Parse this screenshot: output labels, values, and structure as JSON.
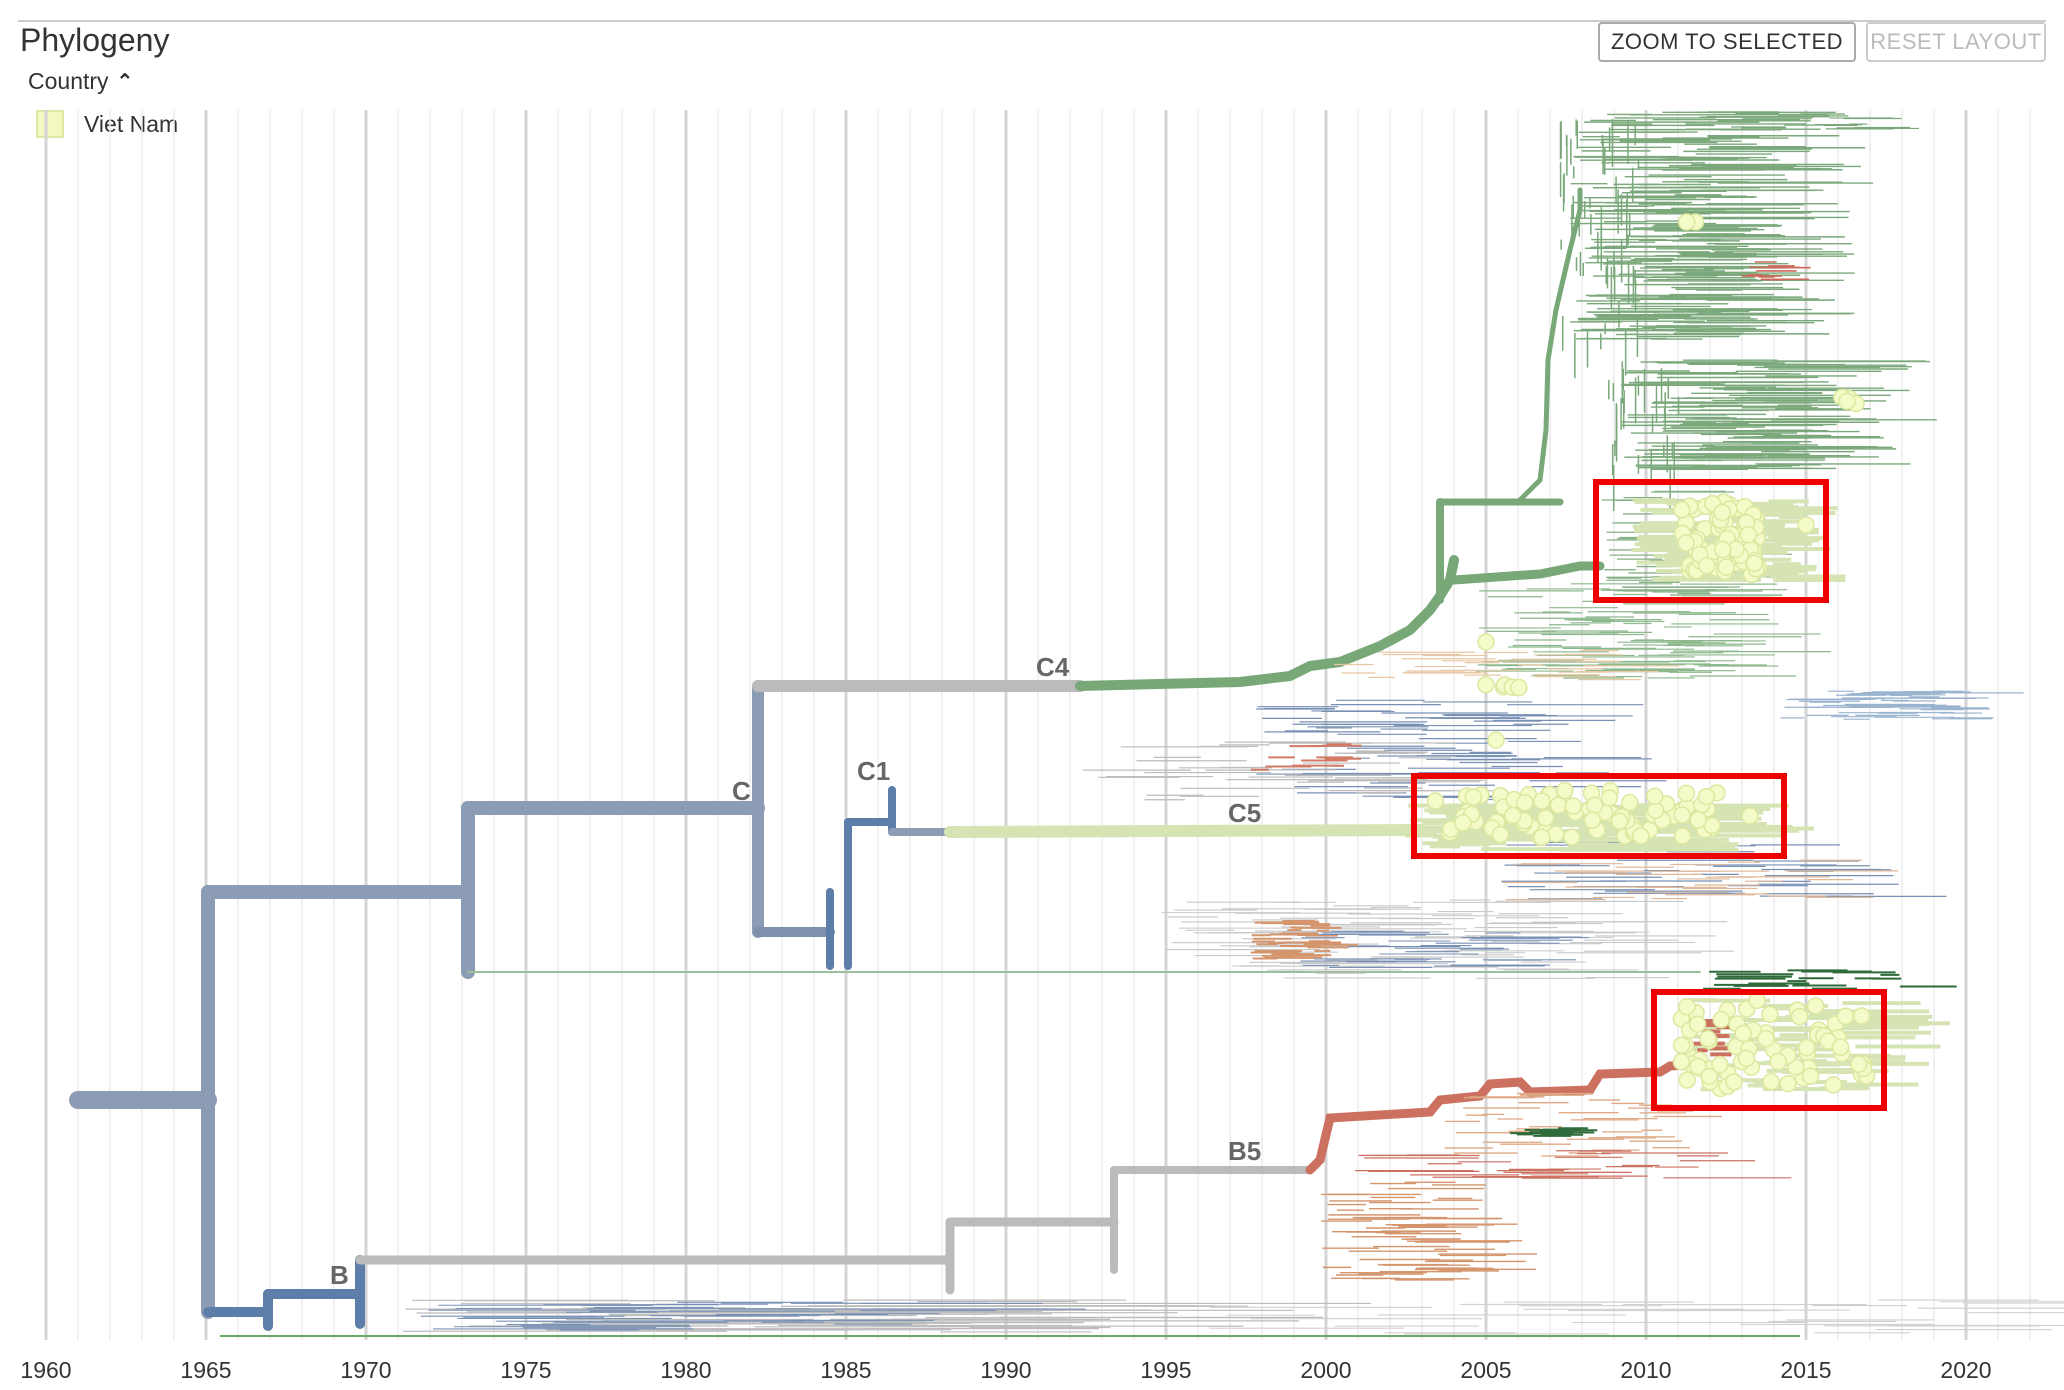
{
  "header": {
    "title": "Phylogeny",
    "zoom_label": "ZOOM TO SELECTED",
    "reset_label": "RESET LAYOUT"
  },
  "legend": {
    "attribute": "Country",
    "items": [
      {
        "label": "Viet Nam",
        "color": "#f2f8c0"
      }
    ]
  },
  "axis": {
    "ticks": [
      "1960",
      "1965",
      "1970",
      "1975",
      "1980",
      "1985",
      "1990",
      "1995",
      "2000",
      "2005",
      "2010",
      "2015",
      "2020"
    ]
  },
  "clades": [
    "C4",
    "C",
    "C1",
    "C5",
    "B5",
    "B"
  ],
  "colors": {
    "root": "#8c9cb4",
    "gray": "#bbbbbb",
    "blue": "#5c7ea8",
    "green": "#78a878",
    "lightgreen": "#d6e4b4",
    "orange": "#d4946c",
    "red": "#cc7060",
    "highlight_box": "#ee0000",
    "tip": "#f4fac8"
  },
  "icons": {
    "collapse": "chevron-up-icon"
  }
}
